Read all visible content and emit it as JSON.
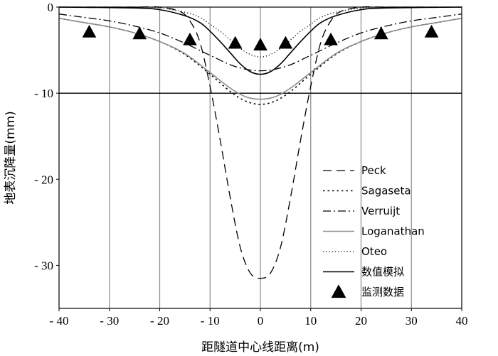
{
  "chart_data": {
    "type": "line",
    "title": "",
    "xlabel": "距隧道中心线距离(m)",
    "ylabel": "地表沉降量(mm)",
    "xlim": [
      -40,
      40
    ],
    "ylim": [
      -35,
      0
    ],
    "x_ticks": [
      -40,
      -30,
      -20,
      -10,
      0,
      10,
      20,
      30,
      40
    ],
    "x_tick_labels": [
      "- 40",
      "- 30",
      "- 20",
      "- 10",
      "0",
      "10",
      "20",
      "30",
      "40"
    ],
    "y_ticks": [
      0,
      -10,
      -20,
      -30
    ],
    "y_tick_labels": [
      "0",
      "- 10",
      "- 20",
      "- 30"
    ],
    "grid": "vertical",
    "legend_position": "lower-right",
    "series": [
      {
        "name": "Peck",
        "style": "dashed",
        "color": "#000000",
        "x": [
          -40,
          -25,
          -20,
          -16,
          -14,
          -12,
          -10,
          -8,
          -6,
          -4,
          -2,
          0,
          2,
          4,
          6,
          8,
          10,
          12,
          14,
          16,
          20,
          25,
          40
        ],
        "y": [
          0,
          0,
          0,
          -0.5,
          -1.6,
          -4.1,
          -9.2,
          -15.4,
          -22.1,
          -27.9,
          -30.9,
          -31.5,
          -30.9,
          -27.9,
          -22.1,
          -15.4,
          -9.2,
          -4.1,
          -1.6,
          -0.5,
          0,
          0,
          0
        ]
      },
      {
        "name": "Sagaseta",
        "style": "dotted",
        "color": "#000000",
        "x": [
          -40,
          -35,
          -30,
          -25,
          -20,
          -15,
          -10,
          -6,
          -3,
          0,
          3,
          6,
          10,
          15,
          20,
          25,
          30,
          35,
          40
        ],
        "y": [
          -1.3,
          -1.8,
          -2.3,
          -3.0,
          -4.0,
          -5.5,
          -7.8,
          -9.8,
          -10.9,
          -11.3,
          -10.9,
          -9.8,
          -7.8,
          -5.5,
          -4.0,
          -3.0,
          -2.3,
          -1.8,
          -1.3
        ]
      },
      {
        "name": "Verruijt",
        "style": "dashdot",
        "color": "#000000",
        "x": [
          -40,
          -35,
          -30,
          -25,
          -20,
          -15,
          -10,
          -5,
          0,
          5,
          10,
          15,
          20,
          25,
          30,
          35,
          40
        ],
        "y": [
          -0.8,
          -1.2,
          -1.6,
          -2.2,
          -3.0,
          -4.2,
          -5.6,
          -6.9,
          -7.4,
          -6.9,
          -5.6,
          -4.2,
          -3.0,
          -2.2,
          -1.6,
          -1.2,
          -0.8
        ]
      },
      {
        "name": "Loganathan",
        "style": "solid",
        "color": "#8c8c8c",
        "x": [
          -40,
          -35,
          -30,
          -25,
          -20,
          -15,
          -10,
          -6,
          -3,
          0,
          3,
          6,
          10,
          15,
          20,
          25,
          30,
          35,
          40
        ],
        "y": [
          -1.3,
          -1.8,
          -2.3,
          -3.0,
          -4.0,
          -5.4,
          -7.6,
          -9.4,
          -10.4,
          -10.7,
          -10.4,
          -9.4,
          -7.6,
          -5.4,
          -4.0,
          -3.0,
          -2.3,
          -1.8,
          -1.3
        ]
      },
      {
        "name": "Oteo",
        "style": "dotted-fine",
        "color": "#000000",
        "x": [
          -40,
          -25,
          -20,
          -15,
          -12,
          -10,
          -8,
          -6,
          -4,
          -2,
          0,
          2,
          4,
          6,
          8,
          10,
          12,
          15,
          20,
          25,
          40
        ],
        "y": [
          0,
          0,
          -0.1,
          -0.6,
          -1.2,
          -2.0,
          -2.8,
          -3.8,
          -4.8,
          -5.5,
          -5.8,
          -5.5,
          -4.8,
          -3.8,
          -2.8,
          -2.0,
          -1.2,
          -0.6,
          -0.1,
          0,
          0
        ]
      },
      {
        "name": "数值模拟",
        "style": "solid",
        "color": "#000000",
        "x": [
          -40,
          -25,
          -20,
          -15,
          -12,
          -10,
          -8,
          -6,
          -4,
          -2,
          0,
          2,
          4,
          6,
          8,
          10,
          12,
          15,
          20,
          25,
          40
        ],
        "y": [
          0,
          -0.1,
          -0.3,
          -1.0,
          -1.8,
          -2.8,
          -4.0,
          -5.3,
          -6.6,
          -7.5,
          -7.8,
          -7.5,
          -6.6,
          -5.3,
          -4.0,
          -2.8,
          -1.8,
          -1.0,
          -0.3,
          -0.1,
          0
        ]
      },
      {
        "name": "监测数据",
        "style": "marker-triangle",
        "color": "#000000",
        "x": [
          -34,
          -24,
          -14,
          -5,
          0,
          5,
          14,
          24,
          34
        ],
        "y": [
          -2.9,
          -3.1,
          -3.8,
          -4.2,
          -4.4,
          -4.2,
          -3.8,
          -3.1,
          -2.9
        ]
      }
    ],
    "reference_line": {
      "y": -10,
      "color": "#000000"
    }
  }
}
